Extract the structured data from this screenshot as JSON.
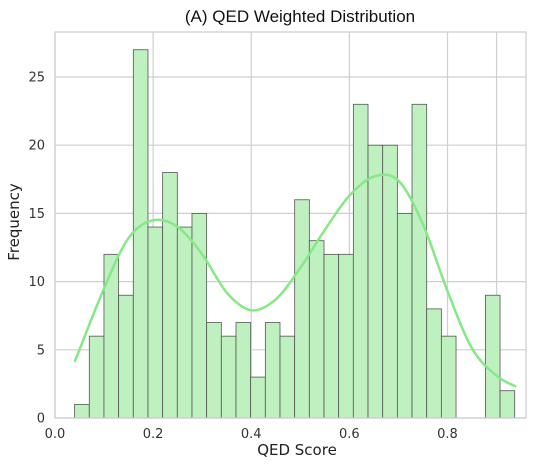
{
  "chart_data": {
    "type": "bar",
    "title": "(A) QED Weighted Distribution",
    "xlabel": "QED Score",
    "ylabel": "Frequency",
    "xlim": [
      0.0,
      0.96
    ],
    "ylim": [
      0,
      28.3
    ],
    "xticks": [
      0.0,
      0.2,
      0.4,
      0.6,
      0.8
    ],
    "xtick_labels": [
      "0.0",
      "0.2",
      "0.4",
      "0.6",
      "0.8"
    ],
    "yticks": [
      0,
      5,
      10,
      15,
      20,
      25
    ],
    "ytick_labels": [
      "0",
      "5",
      "10",
      "15",
      "20",
      "25"
    ],
    "grid": true,
    "bin_start": 0.04,
    "bin_width": 0.0299,
    "values": [
      1,
      6,
      12,
      9,
      27,
      14,
      18,
      14,
      15,
      7,
      6,
      7,
      3,
      7,
      6,
      16,
      13,
      12,
      12,
      23,
      20,
      20,
      15,
      23,
      8,
      6,
      0,
      0,
      9,
      2
    ],
    "bar_color": "#bff0bf",
    "kde": {
      "color": "#86e886",
      "x": [
        0.04,
        0.1,
        0.15,
        0.2,
        0.25,
        0.3,
        0.35,
        0.4,
        0.45,
        0.5,
        0.55,
        0.6,
        0.65,
        0.7,
        0.75,
        0.8,
        0.85,
        0.9,
        0.94
      ],
      "y": [
        4.1,
        9.5,
        13.2,
        14.5,
        14.0,
        12.0,
        9.2,
        7.9,
        8.7,
        11.0,
        13.8,
        16.3,
        17.7,
        17.4,
        14.2,
        9.3,
        5.1,
        3.1,
        2.3
      ]
    }
  }
}
